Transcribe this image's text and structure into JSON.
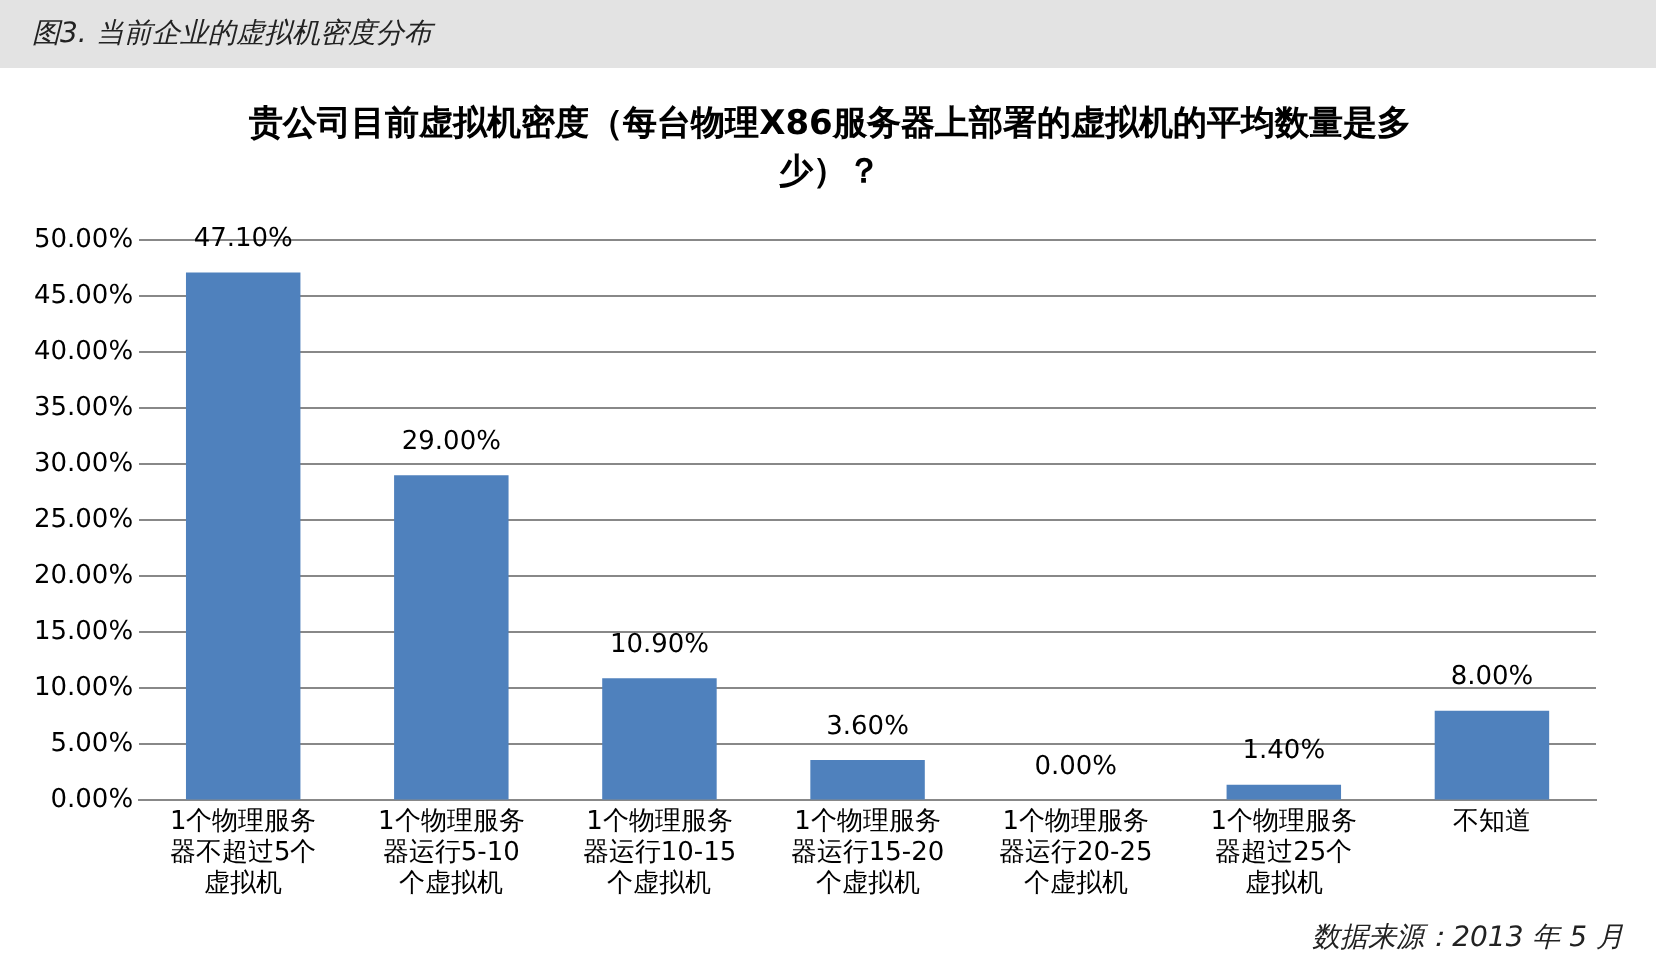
{
  "chart_data": {
    "type": "bar",
    "title": "贵公司目前虚拟机密度（每台物理X86服务器上部署的虚拟机的平均数量是多少）？",
    "categories": [
      "1个物理服务器不超过5个虚拟机",
      "1个物理服务器运行5-10个虚拟机",
      "1个物理服务器运行10-15个虚拟机",
      "1个物理服务器运行15-20个虚拟机",
      "1个物理服务器运行20-25个虚拟机",
      "1个物理服务器超过25个虚拟机",
      "不知道"
    ],
    "values": [
      47.1,
      29.0,
      10.9,
      3.6,
      0.0,
      1.4,
      8.0
    ],
    "value_labels": [
      "47.10%",
      "29.00%",
      "10.90%",
      "3.60%",
      "0.00%",
      "1.40%",
      "8.00%"
    ],
    "color": "#4f81bd",
    "ylim": [
      0,
      50
    ],
    "yticks": [
      {
        "value": 0,
        "label": "0.00%"
      },
      {
        "value": 5,
        "label": "5.00%"
      },
      {
        "value": 10,
        "label": "10.00%"
      },
      {
        "value": 15,
        "label": "15.00%"
      },
      {
        "value": 20,
        "label": "20.00%"
      },
      {
        "value": 25,
        "label": "25.00%"
      },
      {
        "value": 30,
        "label": "30.00%"
      },
      {
        "value": 35,
        "label": "35.00%"
      },
      {
        "value": 40,
        "label": "40.00%"
      },
      {
        "value": 45,
        "label": "45.00%"
      },
      {
        "value": 50,
        "label": "50.00%"
      }
    ],
    "grid": "y",
    "legend": false,
    "annotations": [
      "图3. 当前企业的虚拟机密度分布",
      "数据来源：2013 年 5 月"
    ]
  }
}
